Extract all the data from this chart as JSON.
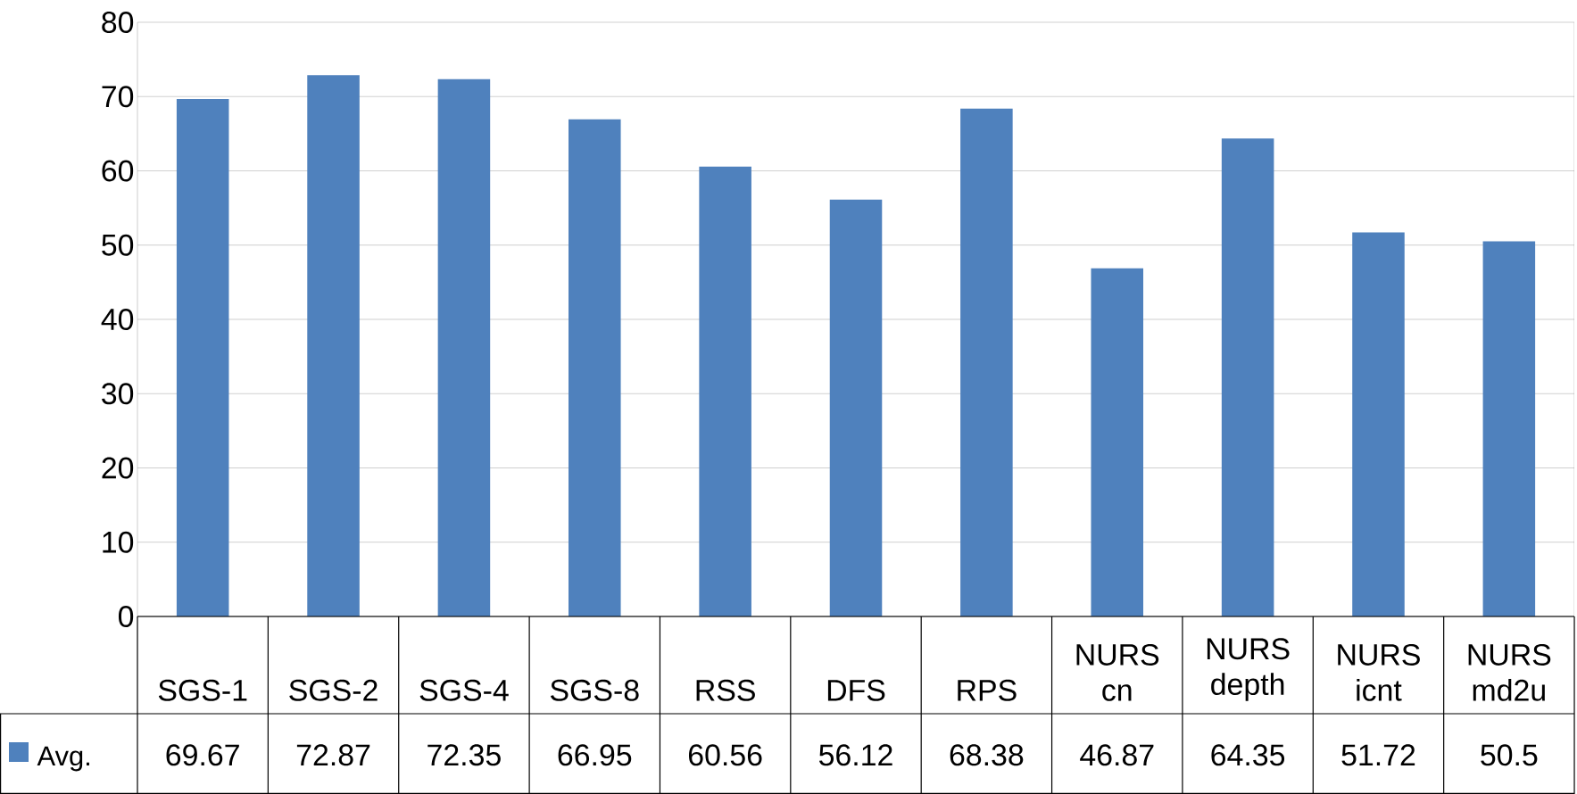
{
  "chart_data": {
    "type": "bar",
    "categories": [
      "SGS-1",
      "SGS-2",
      "SGS-4",
      "SGS-8",
      "RSS",
      "DFS",
      "RPS",
      "NURS cn",
      "NURS depth",
      "NURS icnt",
      "NURS md2u"
    ],
    "series": [
      {
        "name": "Avg.",
        "color": "#4f81bd",
        "values": [
          69.67,
          72.87,
          72.35,
          66.95,
          60.56,
          56.12,
          68.38,
          46.87,
          64.35,
          51.72,
          50.5
        ]
      }
    ],
    "ylim": [
      0,
      80
    ],
    "yticks": [
      0,
      10,
      20,
      30,
      40,
      50,
      60,
      70,
      80
    ],
    "grid": "y",
    "legend": "bottom left",
    "data_labels": true
  }
}
